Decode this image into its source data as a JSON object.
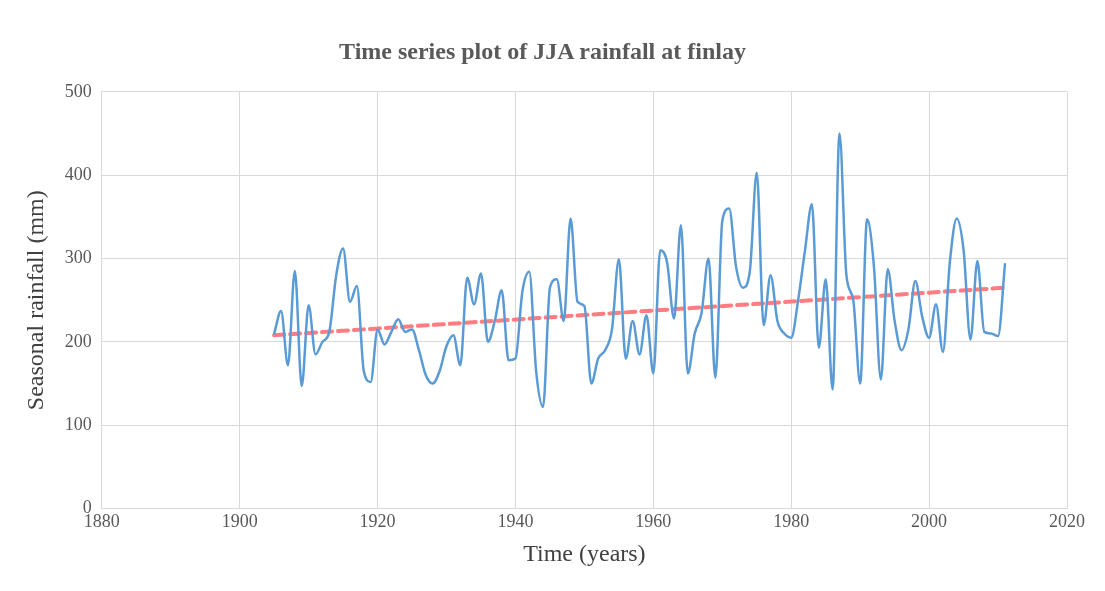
{
  "chart_data": {
    "type": "line",
    "title": "Time series plot of JJA rainfall at finlay",
    "xlabel": "Time (years)",
    "ylabel": "Seasonal rainfall (mm)",
    "x": [
      1905,
      1906,
      1907,
      1908,
      1909,
      1910,
      1911,
      1912,
      1913,
      1914,
      1915,
      1916,
      1917,
      1918,
      1919,
      1920,
      1921,
      1922,
      1923,
      1924,
      1925,
      1926,
      1927,
      1928,
      1929,
      1930,
      1931,
      1932,
      1933,
      1934,
      1935,
      1936,
      1937,
      1938,
      1939,
      1940,
      1941,
      1942,
      1943,
      1944,
      1945,
      1946,
      1947,
      1948,
      1949,
      1950,
      1951,
      1952,
      1953,
      1954,
      1955,
      1956,
      1957,
      1958,
      1959,
      1960,
      1961,
      1962,
      1963,
      1964,
      1965,
      1966,
      1967,
      1968,
      1969,
      1970,
      1971,
      1972,
      1973,
      1974,
      1975,
      1976,
      1977,
      1978,
      1979,
      1980,
      1981,
      1982,
      1983,
      1984,
      1985,
      1986,
      1987,
      1988,
      1989,
      1990,
      1991,
      1992,
      1993,
      1994,
      1995,
      1996,
      1997,
      1998,
      1999,
      2000,
      2001,
      2002,
      2003,
      2004,
      2005,
      2006,
      2007,
      2008,
      2009,
      2010,
      2011
    ],
    "series": [
      {
        "type": "line",
        "color": "#5b9bd5",
        "values": [
          210,
          237,
          172,
          285,
          147,
          244,
          185,
          200,
          212,
          280,
          312,
          248,
          267,
          165,
          152,
          215,
          197,
          212,
          227,
          212,
          215,
          190,
          160,
          150,
          165,
          195,
          208,
          172,
          277,
          245,
          282,
          200,
          225,
          262,
          178,
          180,
          260,
          284,
          165,
          122,
          265,
          275,
          225,
          348,
          248,
          243,
          150,
          180,
          190,
          215,
          299,
          180,
          225,
          185,
          232,
          162,
          310,
          295,
          228,
          340,
          162,
          210,
          235,
          300,
          157,
          345,
          360,
          290,
          265,
          285,
          403,
          220,
          280,
          225,
          210,
          205,
          250,
          310,
          365,
          193,
          275,
          143,
          450,
          280,
          250,
          150,
          347,
          290,
          155,
          287,
          225,
          190,
          215,
          273,
          230,
          205,
          245,
          188,
          295,
          348,
          310,
          203,
          297,
          212,
          210,
          207,
          293
        ]
      },
      {
        "type": "line",
        "color": "#ff7c80",
        "line_style": "dashed",
        "x": [
          1905,
          2011
        ],
        "values": [
          208,
          265
        ]
      }
    ],
    "xlim": [
      1880,
      2020
    ],
    "xticks": [
      1880,
      1900,
      1920,
      1940,
      1960,
      1980,
      2000,
      2020
    ],
    "ylim": [
      0,
      500
    ],
    "yticks": [
      0,
      100,
      200,
      300,
      400,
      500
    ],
    "grid": true,
    "legend": false,
    "marker": "none"
  }
}
